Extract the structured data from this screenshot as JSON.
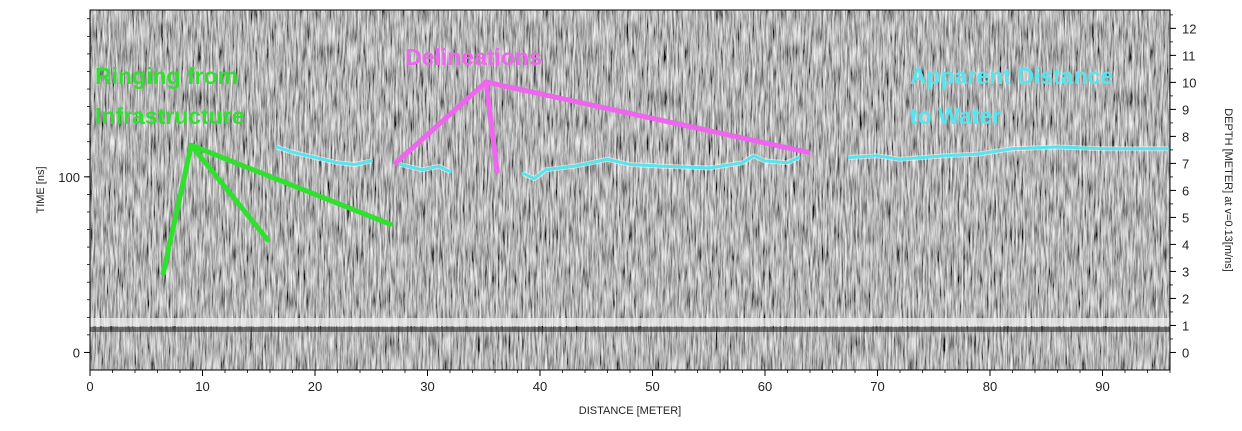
{
  "chart_data": {
    "type": "heatmap",
    "title": "",
    "description_kind": "GPR radargram (grayscale reflection amplitude)",
    "xlabel": "DISTANCE [METER]",
    "ylabel_left": "TIME [ns]",
    "ylabel_right": "DEPTH [METER] at v=0.13[m/ns]",
    "xlim": [
      0,
      96
    ],
    "ylim_time": [
      -10,
      195
    ],
    "ylim_depth": [
      -0.65,
      12.68
    ],
    "x_ticks": [
      "0",
      "10",
      "20",
      "30",
      "40",
      "50",
      "60",
      "70",
      "80",
      "90"
    ],
    "y_ticks_time": [
      "0",
      "100"
    ],
    "y_ticks_depth": [
      "0",
      "1",
      "2",
      "3",
      "4",
      "5",
      "6",
      "7",
      "8",
      "9",
      "10",
      "11",
      "12"
    ],
    "colors": {
      "ringing": "#2fe02f",
      "delineations": "#ee66ee",
      "water": "#55e5ee"
    },
    "annotations": [
      {
        "label_lines": [
          "Ringing from",
          "Infrastructure"
        ],
        "color": "#2fe02f",
        "vertex": [
          9,
          118
        ],
        "pointers": [
          [
            6.5,
            45
          ],
          [
            15.8,
            64
          ],
          [
            26.7,
            73
          ]
        ]
      },
      {
        "label_lines": [
          "Delineations"
        ],
        "color": "#ee66ee",
        "vertex": [
          35.2,
          154
        ],
        "pointers": [
          [
            27.2,
            108
          ],
          [
            36.2,
            103
          ],
          [
            63.8,
            114
          ]
        ]
      },
      {
        "label_lines": [
          "Apparent Distance",
          "to Water"
        ],
        "color": "#55e5ee",
        "pointers": []
      }
    ],
    "water_trace": [
      [
        [
          16.6,
          117
        ],
        [
          18,
          114
        ],
        [
          20,
          111
        ],
        [
          22,
          108
        ],
        [
          23.5,
          107
        ],
        [
          25,
          109
        ]
      ],
      [
        [
          27.6,
          107
        ],
        [
          29.5,
          104
        ],
        [
          31,
          106
        ],
        [
          32,
          103
        ]
      ],
      [
        [
          38.5,
          102
        ],
        [
          39.5,
          99
        ],
        [
          40.5,
          104
        ],
        [
          43,
          106
        ],
        [
          46,
          110
        ],
        [
          48,
          107
        ],
        [
          51,
          106
        ],
        [
          55,
          105
        ],
        [
          58,
          108
        ],
        [
          59,
          112
        ],
        [
          60,
          109
        ],
        [
          62,
          108
        ],
        [
          63,
          111
        ]
      ],
      [
        [
          67.5,
          111
        ],
        [
          70,
          112
        ],
        [
          72,
          110
        ],
        [
          76,
          112
        ],
        [
          79,
          113
        ],
        [
          82,
          116
        ],
        [
          86,
          117
        ],
        [
          90,
          116
        ],
        [
          95.8,
          116
        ]
      ]
    ]
  }
}
